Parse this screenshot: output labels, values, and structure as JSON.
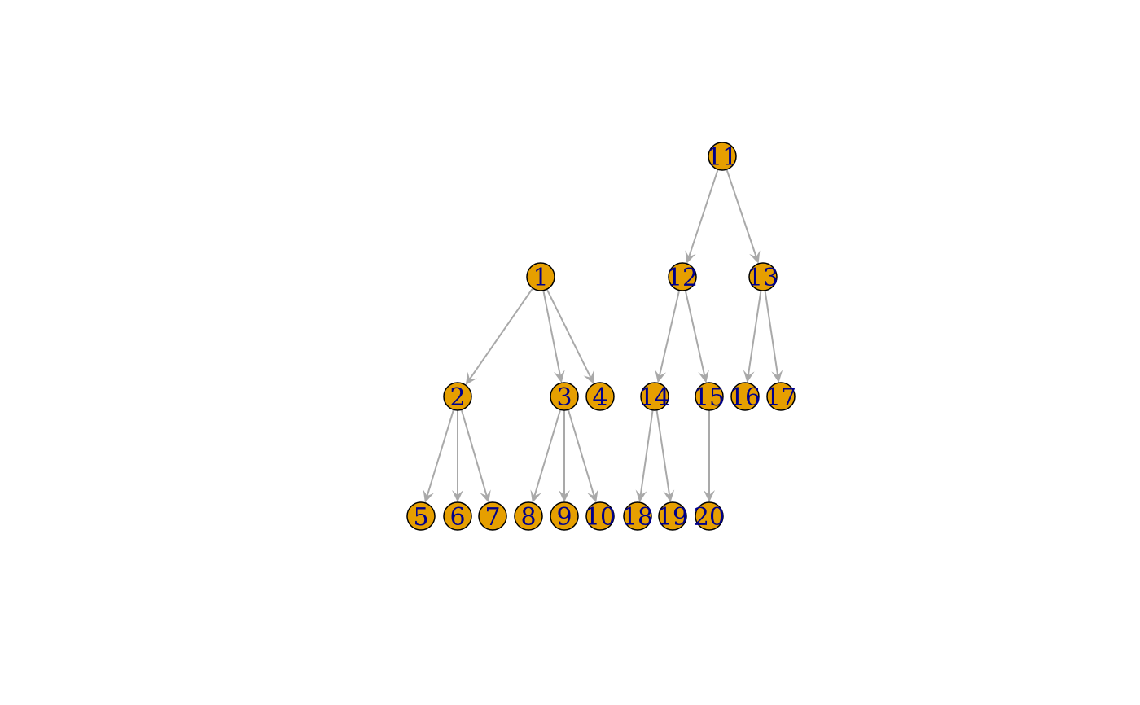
{
  "graph": {
    "nodes": [
      {
        "id": 1,
        "label": "1"
      },
      {
        "id": 2,
        "label": "2"
      },
      {
        "id": 3,
        "label": "3"
      },
      {
        "id": 4,
        "label": "4"
      },
      {
        "id": 5,
        "label": "5"
      },
      {
        "id": 6,
        "label": "6"
      },
      {
        "id": 7,
        "label": "7"
      },
      {
        "id": 8,
        "label": "8"
      },
      {
        "id": 9,
        "label": "9"
      },
      {
        "id": 10,
        "label": "10"
      },
      {
        "id": 11,
        "label": "11"
      },
      {
        "id": 12,
        "label": "12"
      },
      {
        "id": 13,
        "label": "13"
      },
      {
        "id": 14,
        "label": "14"
      },
      {
        "id": 15,
        "label": "15"
      },
      {
        "id": 16,
        "label": "16"
      },
      {
        "id": 17,
        "label": "17"
      },
      {
        "id": 18,
        "label": "18"
      },
      {
        "id": 19,
        "label": "19"
      },
      {
        "id": 20,
        "label": "20"
      }
    ],
    "edges": [
      [
        1,
        2
      ],
      [
        1,
        3
      ],
      [
        1,
        4
      ],
      [
        2,
        5
      ],
      [
        2,
        6
      ],
      [
        2,
        7
      ],
      [
        3,
        8
      ],
      [
        3,
        9
      ],
      [
        3,
        10
      ],
      [
        11,
        12
      ],
      [
        11,
        13
      ],
      [
        12,
        14
      ],
      [
        12,
        15
      ],
      [
        13,
        16
      ],
      [
        13,
        17
      ],
      [
        14,
        18
      ],
      [
        14,
        19
      ],
      [
        15,
        20
      ]
    ],
    "colors": {
      "node_fill": "#E69F00",
      "node_stroke": "#000000",
      "label": "#00008B",
      "edge": "#A9A9A9"
    }
  }
}
